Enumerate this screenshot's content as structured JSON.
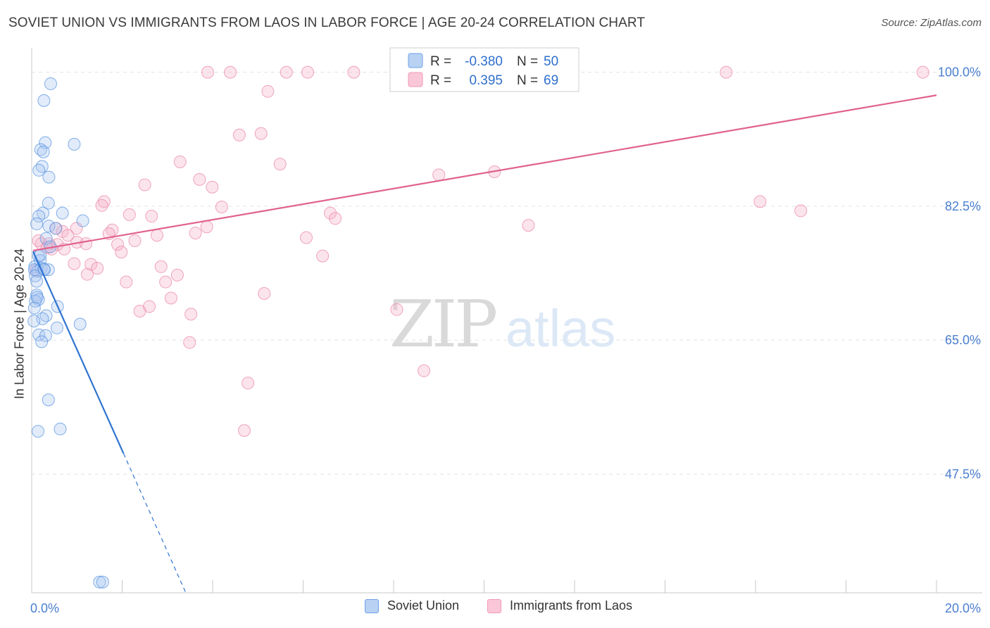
{
  "title": "SOVIET UNION VS IMMIGRANTS FROM LAOS IN LABOR FORCE | AGE 20-24 CORRELATION CHART",
  "source": "Source: ZipAtlas.com",
  "watermark": {
    "zip": "ZIP",
    "atlas": "atlas"
  },
  "colors": {
    "blue": "#6fa3e8",
    "blue_line": "#2f74d0",
    "pink": "#f09ab6",
    "pink_line": "#e0628e",
    "axis_text": "#4a7ed0"
  },
  "legend_top": {
    "rows": [
      {
        "r_label": "R =",
        "r_value": "-0.380",
        "n_label": "N =",
        "n_value": "50"
      },
      {
        "r_label": "R =",
        "r_value": "0.395",
        "n_label": "N =",
        "n_value": "69"
      }
    ]
  },
  "chart_data": {
    "type": "scatter",
    "title": "SOVIET UNION VS IMMIGRANTS FROM LAOS IN LABOR FORCE | AGE 20-24 CORRELATION CHART",
    "xlabel": "",
    "ylabel": "In Labor Force | Age 20-24",
    "xlim": [
      0,
      20
    ],
    "ylim": [
      32,
      103
    ],
    "x_tick_labels": [
      "0.0%",
      "20.0%"
    ],
    "y_ticks": [
      47.5,
      65.0,
      82.5,
      100.0
    ],
    "y_tick_labels": [
      "47.5%",
      "65.0%",
      "82.5%",
      "100.0%"
    ],
    "grid": true,
    "legend": "bottom-center",
    "series": [
      {
        "name": "Soviet Union",
        "color": "#6fa3e8",
        "points": [
          [
            0.42,
            98.5
          ],
          [
            0.27,
            96.3
          ],
          [
            0.3,
            90.8
          ],
          [
            0.94,
            90.6
          ],
          [
            0.2,
            89.9
          ],
          [
            0.26,
            89.6
          ],
          [
            0.23,
            87.7
          ],
          [
            0.16,
            87.2
          ],
          [
            0.38,
            86.3
          ],
          [
            0.37,
            82.9
          ],
          [
            0.68,
            81.6
          ],
          [
            0.25,
            81.6
          ],
          [
            0.16,
            81.2
          ],
          [
            1.13,
            80.6
          ],
          [
            0.11,
            80.2
          ],
          [
            0.38,
            79.9
          ],
          [
            0.53,
            79.6
          ],
          [
            0.32,
            78.3
          ],
          [
            0.15,
            76.0
          ],
          [
            0.19,
            75.4
          ],
          [
            0.07,
            74.6
          ],
          [
            0.06,
            74.2
          ],
          [
            0.21,
            74.4
          ],
          [
            0.13,
            74.0
          ],
          [
            0.37,
            74.2
          ],
          [
            0.27,
            74.3
          ],
          [
            0.08,
            73.4
          ],
          [
            0.11,
            72.7
          ],
          [
            0.11,
            70.9
          ],
          [
            0.15,
            70.3
          ],
          [
            0.08,
            70.1
          ],
          [
            0.57,
            69.4
          ],
          [
            0.32,
            68.2
          ],
          [
            0.24,
            67.8
          ],
          [
            0.05,
            67.5
          ],
          [
            1.07,
            67.1
          ],
          [
            0.56,
            66.6
          ],
          [
            0.16,
            65.7
          ],
          [
            0.31,
            65.6
          ],
          [
            0.22,
            64.8
          ],
          [
            0.37,
            57.2
          ],
          [
            0.63,
            53.4
          ],
          [
            0.14,
            53.1
          ],
          [
            1.5,
            33.4
          ],
          [
            1.57,
            33.4
          ],
          [
            0.06,
            69.2
          ],
          [
            0.19,
            76.1
          ],
          [
            0.12,
            70.6
          ],
          [
            0.28,
            74.2
          ],
          [
            0.41,
            77.2
          ]
        ],
        "trend": {
          "x": [
            0.03,
            2.03
          ],
          "y": [
            76.6,
            50.2
          ],
          "dashed_to": [
            3.4,
            32.1
          ]
        }
      },
      {
        "name": "Immigrants from Laos",
        "color": "#f09ab6",
        "points": [
          [
            3.89,
            100.0
          ],
          [
            4.39,
            100.0
          ],
          [
            5.63,
            100.0
          ],
          [
            6.1,
            100.0
          ],
          [
            7.12,
            100.0
          ],
          [
            15.35,
            100.0
          ],
          [
            19.7,
            100.0
          ],
          [
            5.22,
            97.5
          ],
          [
            4.59,
            91.8
          ],
          [
            5.07,
            92.0
          ],
          [
            3.28,
            88.3
          ],
          [
            5.49,
            88.0
          ],
          [
            9.0,
            86.6
          ],
          [
            10.23,
            87.0
          ],
          [
            3.71,
            86.0
          ],
          [
            2.5,
            85.3
          ],
          [
            3.99,
            85.0
          ],
          [
            1.6,
            83.1
          ],
          [
            1.55,
            82.6
          ],
          [
            4.2,
            82.4
          ],
          [
            2.16,
            81.4
          ],
          [
            2.65,
            81.2
          ],
          [
            6.6,
            81.6
          ],
          [
            6.71,
            80.9
          ],
          [
            16.1,
            83.1
          ],
          [
            17.0,
            81.9
          ],
          [
            10.98,
            80.0
          ],
          [
            3.87,
            79.8
          ],
          [
            0.99,
            79.6
          ],
          [
            1.78,
            79.4
          ],
          [
            0.68,
            79.2
          ],
          [
            0.54,
            79.6
          ],
          [
            1.71,
            78.9
          ],
          [
            2.77,
            78.7
          ],
          [
            3.62,
            79.0
          ],
          [
            6.07,
            78.4
          ],
          [
            2.28,
            78.0
          ],
          [
            1.0,
            77.8
          ],
          [
            1.2,
            77.6
          ],
          [
            0.8,
            78.7
          ],
          [
            1.9,
            77.5
          ],
          [
            0.38,
            77.6
          ],
          [
            0.57,
            77.5
          ],
          [
            0.21,
            77.6
          ],
          [
            0.44,
            76.9
          ],
          [
            0.72,
            76.9
          ],
          [
            1.98,
            76.5
          ],
          [
            6.43,
            76.0
          ],
          [
            0.94,
            75.0
          ],
          [
            1.31,
            74.9
          ],
          [
            1.45,
            74.4
          ],
          [
            2.86,
            74.6
          ],
          [
            1.23,
            73.6
          ],
          [
            3.22,
            73.5
          ],
          [
            2.09,
            72.6
          ],
          [
            2.96,
            72.6
          ],
          [
            5.14,
            71.1
          ],
          [
            3.08,
            70.5
          ],
          [
            2.6,
            69.4
          ],
          [
            2.39,
            68.8
          ],
          [
            3.52,
            68.4
          ],
          [
            8.07,
            69.0
          ],
          [
            3.49,
            64.7
          ],
          [
            8.67,
            61.0
          ],
          [
            4.78,
            59.4
          ],
          [
            4.7,
            53.2
          ],
          [
            0.15,
            78.0
          ],
          [
            0.09,
            74.1
          ],
          [
            0.34,
            77.1
          ]
        ],
        "trend": {
          "x": [
            0.03,
            20.0
          ],
          "y": [
            76.7,
            97.0
          ]
        }
      }
    ]
  }
}
